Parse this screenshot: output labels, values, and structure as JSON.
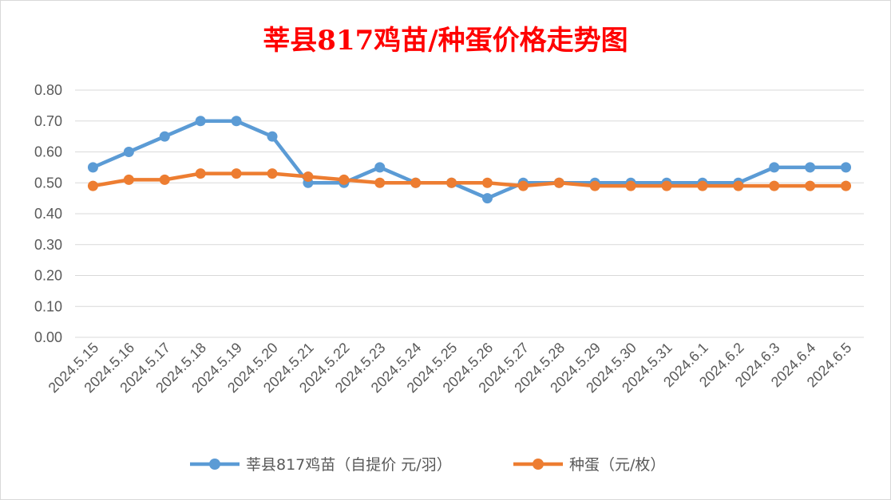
{
  "chart_data": {
    "type": "line",
    "title": "莘县817鸡苗/种蛋价格走势图",
    "xlabel": "",
    "ylabel": "",
    "ylim": [
      0,
      0.8
    ],
    "yticks": [
      "0.00",
      "0.10",
      "0.20",
      "0.30",
      "0.40",
      "0.50",
      "0.60",
      "0.70",
      "0.80"
    ],
    "grid": true,
    "legend_position": "bottom",
    "categories": [
      "2024.5.15",
      "2024.5.16",
      "2024.5.17",
      "2024.5.18",
      "2024.5.19",
      "2024.5.20",
      "2024.5.21",
      "2024.5.22",
      "2024.5.23",
      "2024.5.24",
      "2024.5.25",
      "2024.5.26",
      "2024.5.27",
      "2024.5.28",
      "2024.5.29",
      "2024.5.30",
      "2024.5.31",
      "2024.6.1",
      "2024.6.2",
      "2024.6.3",
      "2024.6.4",
      "2024.6.5"
    ],
    "series": [
      {
        "name": "莘县817鸡苗（自提价 元/羽）",
        "color": "#5b9bd5",
        "values": [
          0.55,
          0.6,
          0.65,
          0.7,
          0.7,
          0.65,
          0.5,
          0.5,
          0.55,
          0.5,
          0.5,
          0.45,
          0.5,
          0.5,
          0.5,
          0.5,
          0.5,
          0.5,
          0.5,
          0.55,
          0.55,
          0.55
        ]
      },
      {
        "name": "种蛋（元/枚）",
        "color": "#ed7d31",
        "values": [
          0.49,
          0.51,
          0.51,
          0.53,
          0.53,
          0.53,
          0.52,
          0.51,
          0.5,
          0.5,
          0.5,
          0.5,
          0.49,
          0.5,
          0.49,
          0.49,
          0.49,
          0.49,
          0.49,
          0.49,
          0.49,
          0.49
        ]
      }
    ]
  }
}
